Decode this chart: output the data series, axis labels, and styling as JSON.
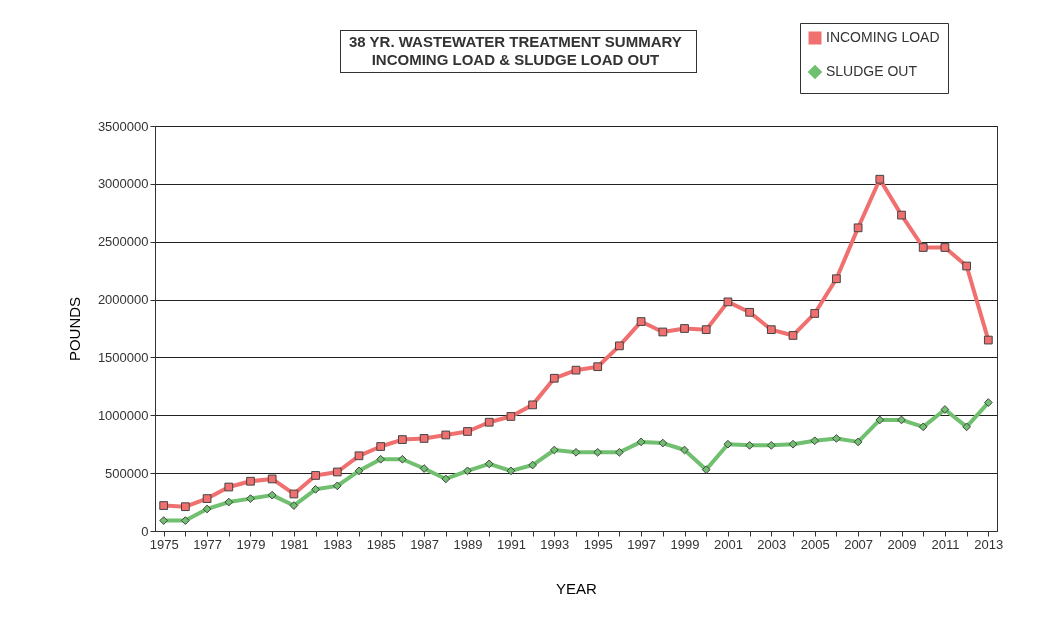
{
  "chart_data": {
    "type": "line",
    "title": "38  YR. WASTEWATER TREATMENT SUMMARY",
    "subtitle": "INCOMING LOAD & SLUDGE LOAD OUT",
    "xlabel": "YEAR",
    "ylabel": "POUNDS",
    "x": [
      1975,
      1976,
      1977,
      1978,
      1979,
      1980,
      1981,
      1982,
      1983,
      1984,
      1985,
      1986,
      1987,
      1988,
      1989,
      1990,
      1991,
      1992,
      1993,
      1994,
      1995,
      1996,
      1997,
      1998,
      1999,
      2000,
      2001,
      2002,
      2003,
      2004,
      2005,
      2006,
      2007,
      2008,
      2009,
      2010,
      2011,
      2012,
      2013
    ],
    "series": [
      {
        "name": "INCOMING LOAD",
        "color": "#f07070",
        "marker": "square",
        "values": [
          220000,
          210000,
          280000,
          380000,
          430000,
          450000,
          320000,
          480000,
          510000,
          650000,
          730000,
          790000,
          800000,
          830000,
          860000,
          940000,
          990000,
          1090000,
          1320000,
          1390000,
          1420000,
          1600000,
          1810000,
          1720000,
          1750000,
          1740000,
          1980000,
          1890000,
          1740000,
          1690000,
          1880000,
          2180000,
          2620000,
          3040000,
          2730000,
          2450000,
          2450000,
          2290000,
          1650000
        ]
      },
      {
        "name": "SLUDGE OUT",
        "color": "#70c070",
        "marker": "diamond",
        "values": [
          90000,
          90000,
          190000,
          250000,
          280000,
          310000,
          220000,
          360000,
          390000,
          520000,
          620000,
          620000,
          540000,
          450000,
          520000,
          580000,
          520000,
          570000,
          700000,
          680000,
          680000,
          680000,
          770000,
          760000,
          700000,
          530000,
          750000,
          740000,
          740000,
          750000,
          780000,
          800000,
          770000,
          960000,
          960000,
          900000,
          1050000,
          900000,
          1110000
        ]
      }
    ],
    "xlim": [
      1974.6,
      2013.4
    ],
    "xticks": [
      1975,
      {
        "value": 1976,
        "label": null
      },
      1977,
      {
        "value": 1978,
        "label": null
      },
      1979,
      {
        "value": 1980,
        "label": null
      },
      1981,
      {
        "value": 1982,
        "label": null
      },
      1983,
      {
        "value": 1984,
        "label": null
      },
      1985,
      {
        "value": 1986,
        "label": null
      },
      1987,
      {
        "value": 1988,
        "label": null
      },
      1989,
      {
        "value": 1990,
        "label": null
      },
      1991,
      {
        "value": 1992,
        "label": null
      },
      1993,
      {
        "value": 1994,
        "label": null
      },
      1995,
      {
        "value": 1996,
        "label": null
      },
      1997,
      {
        "value": 1998,
        "label": null
      },
      1999,
      {
        "value": 2000,
        "label": null
      },
      2001,
      {
        "value": 2002,
        "label": null
      },
      2003,
      {
        "value": 2004,
        "label": null
      },
      2005,
      {
        "value": 2006,
        "label": null
      },
      2007,
      {
        "value": 2008,
        "label": null
      },
      2009,
      {
        "value": 2010,
        "label": null
      },
      2011,
      {
        "value": 2012,
        "label": null
      },
      2013
    ],
    "ylim": [
      0,
      3500000
    ],
    "yticks": [
      0,
      500000,
      1000000,
      1500000,
      2000000,
      2500000,
      3000000,
      3500000
    ],
    "grid": "y",
    "legend": "top right",
    "line_style": "solid"
  }
}
